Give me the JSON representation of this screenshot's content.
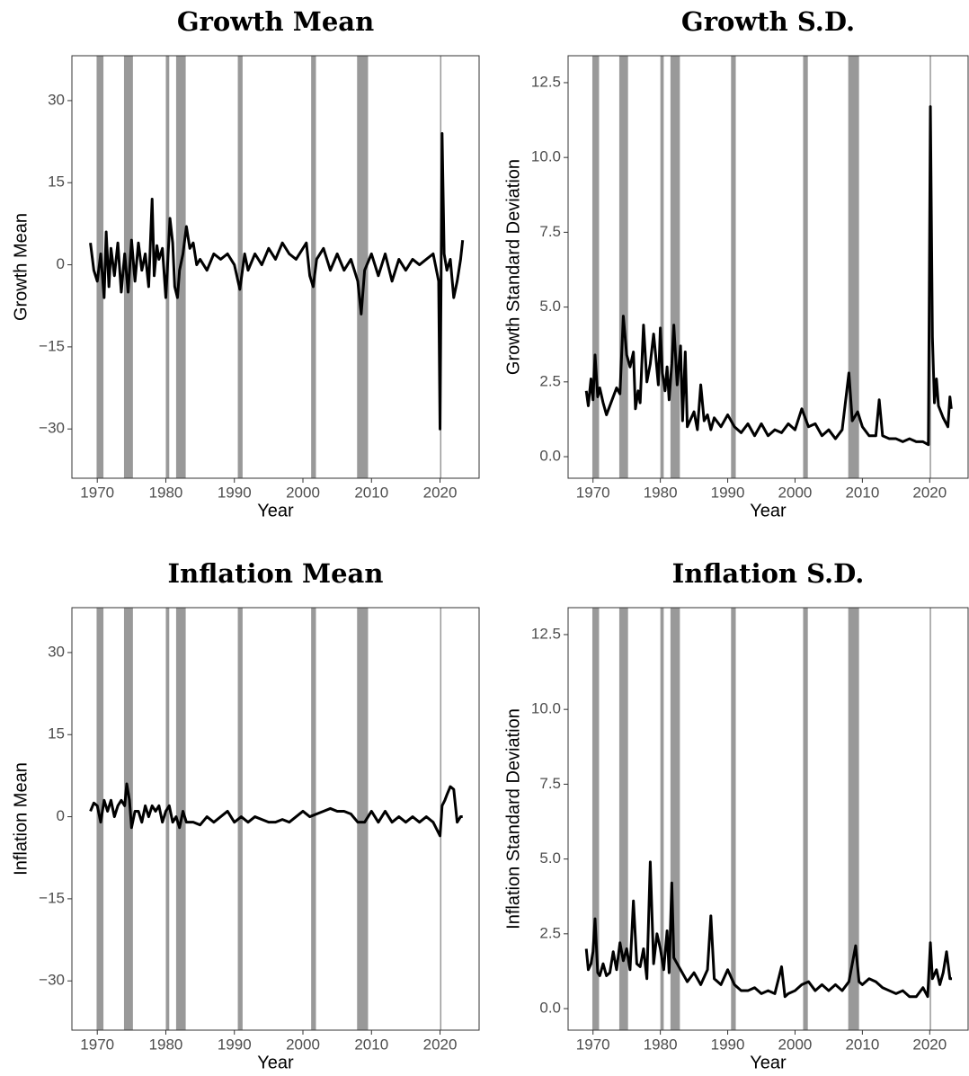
{
  "chart_data": [
    {
      "type": "line",
      "title": "Growth Mean",
      "x_label": "Year",
      "y_label": "Growth Mean",
      "color": "#000000",
      "band_color": "#999999",
      "xlim": [
        1966.3,
        2025.7
      ],
      "xticks": [
        1970,
        1980,
        1990,
        2000,
        2010,
        2020
      ],
      "ylim": [
        -39,
        38.2
      ],
      "yticks": [
        {
          "value": -30,
          "label": "−30"
        },
        {
          "value": -15,
          "label": "−15"
        },
        0,
        15,
        30
      ],
      "recessions": [
        [
          1969.9,
          1970.9
        ],
        [
          1973.9,
          1975.2
        ],
        [
          1980.0,
          1980.5
        ],
        [
          1981.5,
          1982.9
        ],
        [
          1990.5,
          1991.2
        ],
        [
          2001.2,
          2001.9
        ],
        [
          2007.9,
          2009.5
        ],
        [
          2020.0,
          2020.2
        ]
      ],
      "x": [
        1969,
        1969.5,
        1970,
        1970.5,
        1971,
        1971.3,
        1971.7,
        1972,
        1972.5,
        1973,
        1973.5,
        1974,
        1974.5,
        1975,
        1975.5,
        1976,
        1976.5,
        1977,
        1977.5,
        1978,
        1978.3,
        1978.7,
        1979,
        1979.5,
        1980,
        1980.3,
        1980.6,
        1981,
        1981.3,
        1981.7,
        1982,
        1982.5,
        1983,
        1983.5,
        1984,
        1984.5,
        1985,
        1986,
        1987,
        1988,
        1989,
        1990,
        1990.8,
        1991.5,
        1992,
        1993,
        1994,
        1995,
        1996,
        1997,
        1998,
        1999,
        2000,
        2000.5,
        2001,
        2001.5,
        2002,
        2003,
        2004,
        2005,
        2006,
        2007,
        2008,
        2008.5,
        2009,
        2010,
        2011,
        2012,
        2013,
        2014,
        2015,
        2016,
        2017,
        2018,
        2019,
        2019.8,
        2020,
        2020.3,
        2020.6,
        2021,
        2021.5,
        2022,
        2022.5,
        2023,
        2023.3
      ],
      "values": [
        4,
        -1,
        -3,
        2,
        -6,
        6,
        -4,
        3,
        -2,
        4,
        -5,
        2,
        -5,
        4.5,
        -3,
        4,
        -1,
        2,
        -4,
        12,
        -2,
        3.5,
        1,
        3,
        -6,
        1,
        8.5,
        4,
        -4,
        -6,
        -1,
        2,
        7,
        3,
        4,
        0,
        1,
        -1,
        2,
        1,
        2,
        0,
        -4.5,
        2,
        -1,
        2,
        0,
        3,
        1,
        4,
        2,
        1,
        3,
        4,
        -2,
        -4,
        1,
        3,
        -1,
        2,
        -1,
        1,
        -3,
        -9,
        -1,
        2,
        -2,
        2,
        -3,
        1,
        -1,
        1,
        0,
        1,
        2,
        -3,
        -30,
        24,
        2,
        -1,
        1,
        -6,
        -3,
        1,
        4.5
      ]
    },
    {
      "type": "line",
      "title": "Growth S.D.",
      "x_label": "Year",
      "y_label": "Growth Standard Deviation",
      "color": "#000000",
      "band_color": "#999999",
      "xlim": [
        1966.3,
        2025.7
      ],
      "xticks": [
        1970,
        1980,
        1990,
        2000,
        2010,
        2020
      ],
      "ylim": [
        -0.72,
        13.4
      ],
      "yticks": [
        {
          "value": 0,
          "label": "0.0"
        },
        2.5,
        {
          "value": 5,
          "label": "5.0"
        },
        7.5,
        {
          "value": 10,
          "label": "10.0"
        },
        12.5
      ],
      "recessions": [
        [
          1969.9,
          1970.9
        ],
        [
          1973.9,
          1975.2
        ],
        [
          1980.0,
          1980.5
        ],
        [
          1981.5,
          1982.9
        ],
        [
          1990.5,
          1991.2
        ],
        [
          2001.2,
          2001.9
        ],
        [
          2007.9,
          2009.5
        ],
        [
          2020.0,
          2020.2
        ]
      ],
      "x": [
        1969,
        1969.3,
        1969.7,
        1970,
        1970.3,
        1970.7,
        1971,
        1971.5,
        1972,
        1972.5,
        1973,
        1973.5,
        1974,
        1974.5,
        1975,
        1975.5,
        1976,
        1976.3,
        1976.7,
        1977,
        1977.5,
        1978,
        1978.5,
        1979,
        1979.3,
        1979.7,
        1980,
        1980.3,
        1980.7,
        1981,
        1981.3,
        1981.7,
        1982,
        1982.5,
        1983,
        1983.3,
        1983.7,
        1984,
        1985,
        1985.5,
        1986,
        1986.5,
        1987,
        1987.5,
        1988,
        1989,
        1990,
        1991,
        1992,
        1993,
        1994,
        1995,
        1996,
        1997,
        1998,
        1999,
        2000,
        2001,
        2002,
        2003,
        2004,
        2005,
        2006,
        2007,
        2008,
        2008.5,
        2009.3,
        2010,
        2011,
        2012,
        2012.5,
        2013,
        2014,
        2015,
        2016,
        2017,
        2018,
        2019,
        2019.8,
        2020.1,
        2020.4,
        2020.7,
        2021,
        2021.3,
        2022,
        2022.7,
        2023,
        2023.2
      ],
      "values": [
        2.2,
        1.7,
        2.6,
        1.9,
        3.4,
        2,
        2.3,
        1.8,
        1.4,
        1.7,
        2,
        2.3,
        2.1,
        4.7,
        3.4,
        3,
        3.5,
        1.6,
        2.2,
        1.8,
        4.4,
        2.5,
        3.1,
        4.1,
        3.4,
        2.4,
        4.3,
        2.8,
        2.2,
        3,
        1.9,
        3.1,
        4.4,
        2.4,
        3.7,
        1.2,
        3.5,
        1,
        1.5,
        0.9,
        2.4,
        1.2,
        1.4,
        0.9,
        1.3,
        1,
        1.4,
        1,
        0.8,
        1.1,
        0.7,
        1.1,
        0.7,
        0.9,
        0.8,
        1.1,
        0.9,
        1.6,
        1,
        1.1,
        0.7,
        0.9,
        0.6,
        0.9,
        2.8,
        1.2,
        1.5,
        1,
        0.7,
        0.7,
        1.9,
        0.7,
        0.6,
        0.6,
        0.5,
        0.6,
        0.5,
        0.5,
        0.4,
        11.7,
        4,
        1.8,
        2.6,
        1.7,
        1.3,
        1,
        2,
        1.6
      ]
    },
    {
      "type": "line",
      "title": "Inflation Mean",
      "x_label": "Year",
      "y_label": "Inflation Mean",
      "color": "#000000",
      "band_color": "#999999",
      "xlim": [
        1966.3,
        2025.7
      ],
      "xticks": [
        1970,
        1980,
        1990,
        2000,
        2010,
        2020
      ],
      "ylim": [
        -39,
        38.2
      ],
      "yticks": [
        {
          "value": -30,
          "label": "−30"
        },
        {
          "value": -15,
          "label": "−15"
        },
        0,
        15,
        30
      ],
      "recessions": [
        [
          1969.9,
          1970.9
        ],
        [
          1973.9,
          1975.2
        ],
        [
          1980.0,
          1980.5
        ],
        [
          1981.5,
          1982.9
        ],
        [
          1990.5,
          1991.2
        ],
        [
          2001.2,
          2001.9
        ],
        [
          2007.9,
          2009.5
        ],
        [
          2020.0,
          2020.2
        ]
      ],
      "x": [
        1969,
        1969.5,
        1970,
        1970.5,
        1971,
        1971.5,
        1972,
        1972.5,
        1973,
        1973.5,
        1974,
        1974.3,
        1974.7,
        1975,
        1975.5,
        1976,
        1976.5,
        1977,
        1977.5,
        1978,
        1978.5,
        1979,
        1979.5,
        1980,
        1980.5,
        1981,
        1981.5,
        1982,
        1982.5,
        1983,
        1984,
        1985,
        1986,
        1987,
        1988,
        1989,
        1990,
        1991,
        1992,
        1993,
        1994,
        1995,
        1996,
        1997,
        1998,
        1999,
        2000,
        2001,
        2002,
        2003,
        2004,
        2005,
        2006,
        2007,
        2008,
        2009,
        2010,
        2011,
        2012,
        2013,
        2014,
        2015,
        2016,
        2017,
        2018,
        2019,
        2020,
        2020.3,
        2020.7,
        2021,
        2021.5,
        2022,
        2022.5,
        2023,
        2023.3
      ],
      "values": [
        1,
        2.5,
        2,
        -1,
        3,
        1,
        3,
        0,
        2,
        3,
        2,
        6,
        3,
        -2,
        1,
        1,
        -1,
        2,
        0,
        2,
        1,
        2,
        -1,
        1,
        2,
        -1,
        0,
        -2,
        1,
        -1,
        -1,
        -1.5,
        0,
        -1,
        0,
        1,
        -1,
        0,
        -1,
        0,
        -0.5,
        -1,
        -1,
        -0.5,
        -1,
        0,
        1,
        0,
        0.5,
        1,
        1.5,
        1,
        1,
        0.5,
        -1,
        -1,
        1,
        -1,
        1,
        -1,
        0,
        -1,
        0,
        -1,
        0,
        -1,
        -3.5,
        2,
        3,
        4,
        5.5,
        5,
        -1,
        0,
        0
      ]
    },
    {
      "type": "line",
      "title": "Inflation S.D.",
      "x_label": "Year",
      "y_label": "Inflation Standard Deviation",
      "color": "#000000",
      "band_color": "#999999",
      "xlim": [
        1966.3,
        2025.7
      ],
      "xticks": [
        1970,
        1980,
        1990,
        2000,
        2010,
        2020
      ],
      "ylim": [
        -0.72,
        13.4
      ],
      "yticks": [
        {
          "value": 0,
          "label": "0.0"
        },
        2.5,
        {
          "value": 5,
          "label": "5.0"
        },
        7.5,
        {
          "value": 10,
          "label": "10.0"
        },
        12.5
      ],
      "recessions": [
        [
          1969.9,
          1970.9
        ],
        [
          1973.9,
          1975.2
        ],
        [
          1980.0,
          1980.5
        ],
        [
          1981.5,
          1982.9
        ],
        [
          1990.5,
          1991.2
        ],
        [
          2001.2,
          2001.9
        ],
        [
          2007.9,
          2009.5
        ],
        [
          2020.0,
          2020.2
        ]
      ],
      "x": [
        1969,
        1969.3,
        1969.7,
        1970,
        1970.3,
        1970.7,
        1971,
        1971.5,
        1972,
        1972.5,
        1973,
        1973.5,
        1974,
        1974.5,
        1975,
        1975.5,
        1976,
        1976.5,
        1977,
        1977.5,
        1978,
        1978.5,
        1979,
        1979.5,
        1980,
        1980.5,
        1981,
        1981.3,
        1981.7,
        1982,
        1983,
        1984,
        1985,
        1986,
        1987,
        1987.5,
        1988,
        1989,
        1990,
        1991,
        1992,
        1993,
        1994,
        1995,
        1996,
        1997,
        1998,
        1998.5,
        1999,
        2000,
        2001,
        2002,
        2003,
        2004,
        2005,
        2006,
        2007,
        2008,
        2009,
        2009.5,
        2010,
        2011,
        2012,
        2013,
        2014,
        2015,
        2016,
        2017,
        2018,
        2019,
        2019.7,
        2020.1,
        2020.4,
        2021,
        2021.5,
        2022,
        2022.5,
        2023,
        2023.3
      ],
      "values": [
        2,
        1.3,
        1.5,
        1.9,
        3,
        1.2,
        1.1,
        1.5,
        1.1,
        1.2,
        1.9,
        1.3,
        2.2,
        1.6,
        2,
        1.3,
        3.6,
        1.5,
        1.4,
        2,
        1,
        4.9,
        1.5,
        2.5,
        2,
        1.3,
        2.6,
        1.2,
        4.2,
        1.7,
        1.3,
        0.9,
        1.2,
        0.8,
        1.3,
        3.1,
        1,
        0.8,
        1.3,
        0.8,
        0.6,
        0.6,
        0.7,
        0.5,
        0.6,
        0.5,
        1.4,
        0.4,
        0.5,
        0.6,
        0.8,
        0.9,
        0.6,
        0.8,
        0.6,
        0.8,
        0.6,
        0.9,
        2.1,
        0.9,
        0.8,
        1,
        0.9,
        0.7,
        0.6,
        0.5,
        0.6,
        0.4,
        0.4,
        0.7,
        0.4,
        2.2,
        1,
        1.3,
        0.8,
        1.2,
        1.9,
        1,
        1
      ]
    }
  ]
}
